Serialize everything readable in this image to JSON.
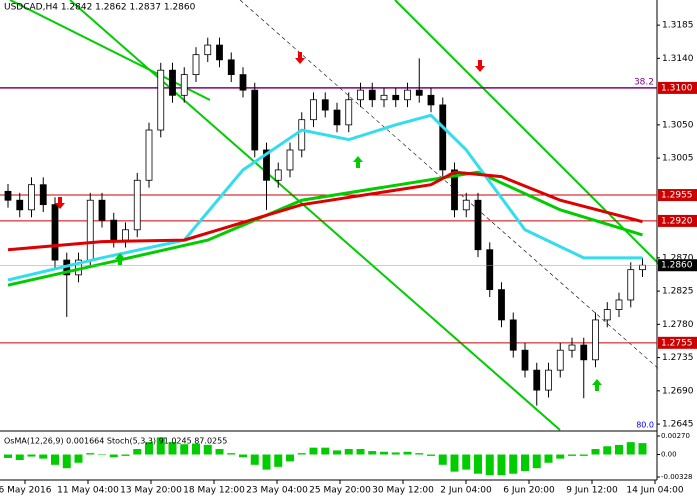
{
  "chart_data": {
    "type": "candlestick",
    "header": "USDCAD,H4  1.2842 1.2862 1.2837 1.2860",
    "ylim": [
      1.2637,
      1.3219
    ],
    "yticks": [
      1.3185,
      {
        "value": 1.314,
        "label": "1.3140"
      },
      {
        "value": 1.305,
        "label": "1.3050"
      },
      1.3005,
      {
        "value": 1.287,
        "label": "1.2870"
      },
      1.2825,
      {
        "value": 1.278,
        "label": "1.2780"
      },
      1.2735,
      {
        "value": 1.269,
        "label": "1.2690"
      },
      1.2645
    ],
    "levels": [
      {
        "value": 1.31,
        "label": "1.3100",
        "color": "#800080"
      },
      {
        "value": 1.2955,
        "label": "1.2955",
        "color": "#cc0000"
      },
      {
        "value": 1.292,
        "label": "1.2920",
        "color": "#cc0000"
      },
      {
        "value": 1.2755,
        "label": "1.2755",
        "color": "#cc0000"
      }
    ],
    "fib_label": "38.2",
    "current": {
      "value": 1.286,
      "label": "1.2860"
    },
    "open": [
      1.296,
      1.2948,
      1.2935,
      1.2969,
      1.2942,
      1.2867,
      1.2847,
      1.2867,
      1.2948,
      1.2921,
      1.2894,
      1.2908,
      1.2975,
      1.3043,
      1.3124,
      1.309,
      1.3118,
      1.3145,
      1.3158,
      1.3138,
      1.3118,
      1.3097,
      1.3016,
      1.2975,
      1.2989,
      1.3016,
      1.3057,
      1.3084,
      1.307,
      1.305,
      1.3084,
      1.3097,
      1.3084,
      1.309,
      1.3084,
      1.3097,
      1.309,
      1.3077,
      1.2989,
      1.2935,
      1.2948,
      1.2881,
      1.2827,
      1.2786,
      1.2745,
      1.2718,
      1.2691,
      1.2718,
      1.2745,
      1.2752,
      1.2732,
      1.2786,
      1.28,
      1.2813,
      1.2854
    ],
    "high": [
      1.297,
      1.2958,
      1.2979,
      1.2979,
      1.2952,
      1.2877,
      1.2877,
      1.2958,
      1.2958,
      1.2931,
      1.2918,
      1.2985,
      1.3053,
      1.3134,
      1.3134,
      1.3128,
      1.3155,
      1.3168,
      1.3168,
      1.3148,
      1.3128,
      1.3107,
      1.3026,
      1.2999,
      1.3026,
      1.3067,
      1.3094,
      1.3094,
      1.308,
      1.3094,
      1.3107,
      1.3107,
      1.31,
      1.31,
      1.3107,
      1.314,
      1.31,
      1.3087,
      1.2999,
      1.2958,
      1.2958,
      1.2891,
      1.2837,
      1.2796,
      1.2755,
      1.2728,
      1.2728,
      1.2755,
      1.2762,
      1.2762,
      1.2796,
      1.281,
      1.2823,
      1.2864,
      1.287
    ],
    "low": [
      1.2938,
      1.2925,
      1.2925,
      1.2932,
      1.2857,
      1.279,
      1.2837,
      1.2857,
      1.2911,
      1.2884,
      1.2884,
      1.2898,
      1.2965,
      1.3033,
      1.308,
      1.308,
      1.3108,
      1.3135,
      1.3128,
      1.3108,
      1.3087,
      1.3006,
      1.2935,
      1.2965,
      1.2979,
      1.3006,
      1.3047,
      1.306,
      1.304,
      1.304,
      1.3074,
      1.3074,
      1.3074,
      1.3074,
      1.3074,
      1.308,
      1.3067,
      1.2979,
      1.2925,
      1.2925,
      1.2871,
      1.2817,
      1.2776,
      1.2735,
      1.2708,
      1.267,
      1.2681,
      1.2708,
      1.2735,
      1.268,
      1.2722,
      1.2776,
      1.279,
      1.2803,
      1.2844
    ],
    "close": [
      1.2948,
      1.2935,
      1.2969,
      1.2942,
      1.2867,
      1.2847,
      1.2867,
      1.2948,
      1.2921,
      1.2894,
      1.2908,
      1.2975,
      1.3043,
      1.3124,
      1.309,
      1.3118,
      1.3145,
      1.3158,
      1.3138,
      1.3118,
      1.3097,
      1.3016,
      1.2975,
      1.2989,
      1.3016,
      1.3057,
      1.3084,
      1.307,
      1.305,
      1.3084,
      1.3097,
      1.3084,
      1.309,
      1.3084,
      1.3097,
      1.309,
      1.3077,
      1.2989,
      1.2935,
      1.2948,
      1.2881,
      1.2827,
      1.2786,
      1.2745,
      1.2718,
      1.2691,
      1.2718,
      1.2745,
      1.2752,
      1.2732,
      1.2786,
      1.28,
      1.2813,
      1.2854,
      1.286
    ],
    "lines": [
      {
        "color": "#00cc00",
        "x": [
          0,
          17,
          25,
          40,
          47,
          54
        ],
        "values": [
          1.2833,
          1.2894,
          1.2948,
          1.2986,
          1.2935,
          1.2901
        ]
      },
      {
        "color": "#33ddee",
        "x": [
          0,
          8,
          15,
          20,
          25,
          29,
          33,
          36,
          39,
          44,
          49,
          54
        ],
        "values": [
          1.284,
          1.287,
          1.2894,
          1.2989,
          1.3043,
          1.303,
          1.305,
          1.3063,
          1.3016,
          1.2908,
          1.287,
          1.287
        ]
      },
      {
        "color": "#dd0000",
        "x": [
          0,
          8,
          15,
          25,
          36,
          38,
          42,
          47,
          54
        ],
        "values": [
          1.2881,
          1.2892,
          1.2894,
          1.2942,
          1.2969,
          1.2986,
          1.298,
          1.2948,
          1.2919
        ]
      }
    ],
    "time_labels": [
      "6 May 2016",
      "11 May 04:00",
      "13 May 20:00",
      "18 May 12:00",
      "23 May 04:00",
      "25 May 20:00",
      "30 May 12:00",
      "2 Jun 04:00",
      "6 Jun 20:00",
      "9 Jun 12:00",
      "14 Jun 04:00"
    ],
    "indicator": {
      "title": "OsMA(12,26,9) 0.001664  Stoch(5,3,3) 91.0245 87.0255",
      "level_label": "80.0",
      "ylim": [
        -0.00328,
        0.0027
      ],
      "yticks": [
        {
          "value": 0.0027,
          "label": "0.00270"
        },
        {
          "value": 0,
          "label": "0.00"
        },
        {
          "value": -0.00328,
          "label": "-0.00328"
        }
      ],
      "color": "#00cc00",
      "values": [
        -0.0005,
        -0.0008,
        -0.0003,
        -0.0006,
        -0.0015,
        -0.002,
        -0.0012,
        0.0002,
        0.0,
        -0.0004,
        -0.0002,
        0.0008,
        0.0018,
        0.0025,
        0.0018,
        0.0015,
        0.0016,
        0.0014,
        0.0008,
        0.0002,
        -0.0004,
        -0.0015,
        -0.0022,
        -0.0018,
        -0.001,
        0.0002,
        0.001,
        0.001,
        0.0006,
        0.0008,
        0.0008,
        0.0005,
        0.0004,
        0.0003,
        0.0004,
        0.0002,
        -0.0002,
        -0.0015,
        -0.0025,
        -0.0022,
        -0.0028,
        -0.003,
        -0.003,
        -0.0028,
        -0.0024,
        -0.002,
        -0.0012,
        -0.0006,
        -0.0002,
        -0.0002,
        0.0008,
        0.0012,
        0.0014,
        0.0018,
        0.001664
      ]
    }
  }
}
